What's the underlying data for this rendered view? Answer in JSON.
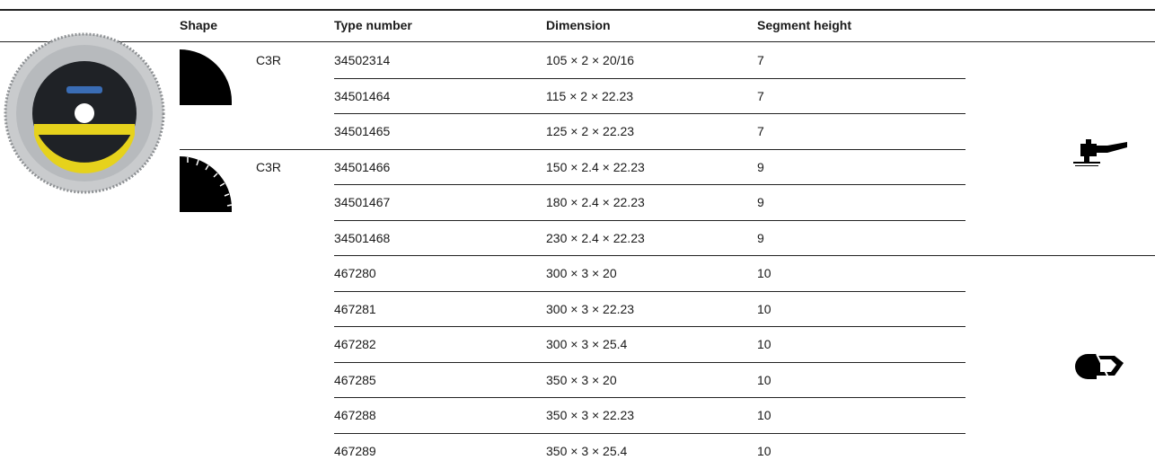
{
  "table": {
    "headers": [
      "Shape",
      "Type number",
      "Dimension",
      "Segment height"
    ],
    "groups": [
      {
        "shape": "C3R",
        "rows": [
          [
            "34502314",
            "105 × 2 × 20/16",
            7
          ],
          [
            "34501464",
            "115 × 2 × 22.23",
            7
          ],
          [
            "34501465",
            "125 × 2 × 22.23",
            7
          ]
        ]
      },
      {
        "shape": "C3R",
        "rows": [
          [
            "34501466",
            "150 × 2.4 × 22.23",
            9
          ],
          [
            "34501467",
            "180 × 2.4 × 22.23",
            9
          ],
          [
            "34501468",
            "230 × 2.4 × 22.23",
            9
          ]
        ]
      },
      {
        "rows": [
          [
            "467280",
            "300 × 3 × 20",
            10
          ],
          [
            "467281",
            "300 × 3 × 22.23",
            10
          ],
          [
            "467282",
            "300 × 3 × 25.4",
            10
          ],
          [
            "467285",
            "350 × 3 × 20",
            10
          ],
          [
            "467288",
            "350 × 3 × 22.23",
            10
          ],
          [
            "467289",
            "350 × 3 × 25.4",
            10
          ]
        ]
      }
    ]
  }
}
